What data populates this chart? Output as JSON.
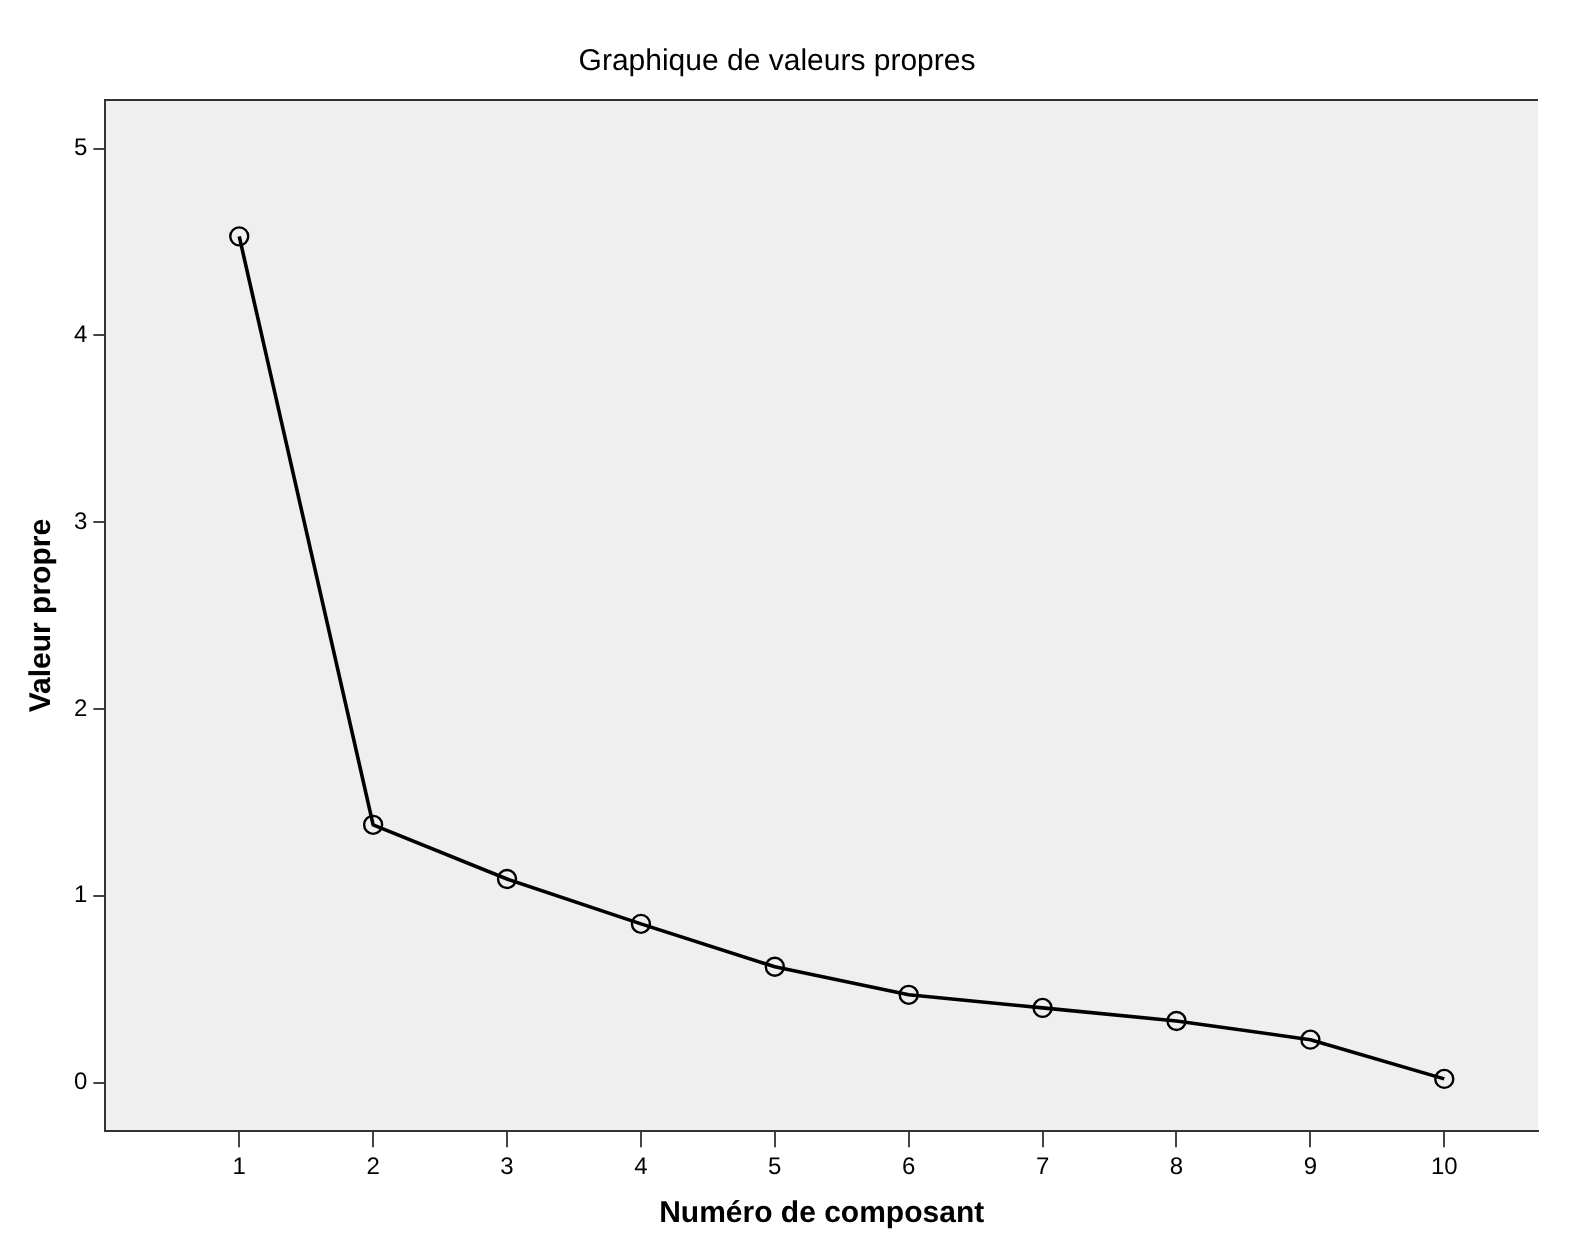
{
  "chart_data": {
    "type": "line",
    "title": "Graphique de valeurs propres",
    "xlabel": "Numéro de composant",
    "ylabel": "Valeur propre",
    "x": [
      1,
      2,
      3,
      4,
      5,
      6,
      7,
      8,
      9,
      10
    ],
    "series": [
      {
        "color": "#000000",
        "values": [
          4.53,
          1.38,
          1.09,
          0.85,
          0.62,
          0.47,
          0.4,
          0.33,
          0.23,
          0.02
        ]
      }
    ],
    "xlim": [
      0,
      10.7
    ],
    "xticks": [
      1,
      2,
      3,
      4,
      5,
      6,
      7,
      8,
      9,
      10
    ],
    "ylim": [
      -0.26,
      5.26
    ],
    "yticks": [
      0,
      1,
      2,
      3,
      4,
      5
    ],
    "grid": false,
    "legend": false,
    "marker": "circle",
    "line_style": "solid"
  }
}
